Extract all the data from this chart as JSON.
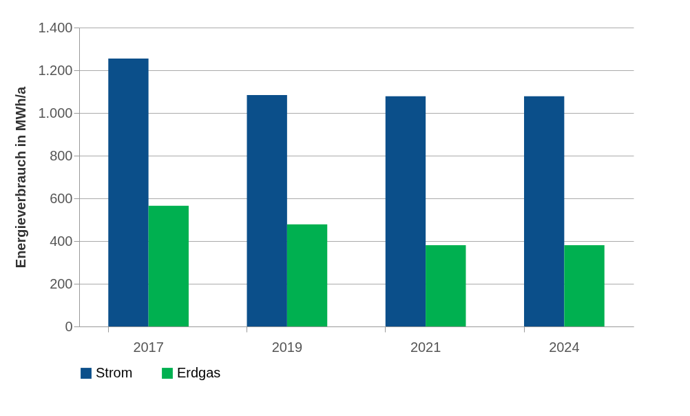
{
  "chart_data": {
    "type": "bar",
    "ylabel": "Energieverbrauch in MWh/a",
    "categories": [
      "2017",
      "2019",
      "2021",
      "2024"
    ],
    "series": [
      {
        "name": "Strom",
        "color": "#0b4f8a",
        "values": [
          1255,
          1084,
          1078,
          1078
        ]
      },
      {
        "name": "Erdgas",
        "color": "#00b050",
        "values": [
          565,
          478,
          381,
          381
        ]
      }
    ],
    "ylim": [
      0,
      1400
    ],
    "yticks": [
      0,
      200,
      400,
      600,
      800,
      {
        "value": 1000,
        "label": "1.000"
      },
      {
        "value": 1200,
        "label": "1.200"
      },
      {
        "value": 1400,
        "label": "1.400"
      }
    ],
    "grid": "y",
    "legend": "bottom"
  }
}
